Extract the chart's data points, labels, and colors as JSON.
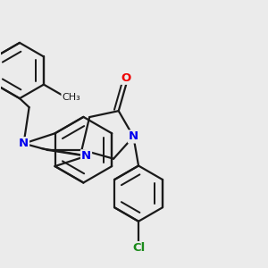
{
  "background_color": "#ebebeb",
  "bond_color": "#1a1a1a",
  "nitrogen_color": "#0000ee",
  "oxygen_color": "#ee0000",
  "chlorine_color": "#1a8a1a",
  "line_width": 1.6,
  "font_size_atom": 9.5,
  "fig_width": 3.0,
  "fig_height": 3.0,
  "dpi": 100,
  "xlim": [
    0,
    4.2
  ],
  "ylim": [
    0,
    4.2
  ]
}
